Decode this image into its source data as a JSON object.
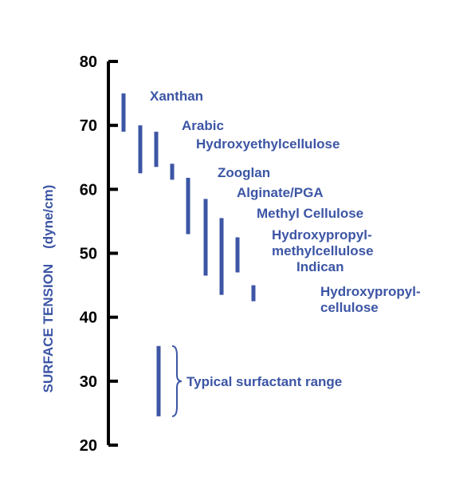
{
  "chart_data": {
    "type": "range",
    "title": "",
    "xlabel": "",
    "ylabel": "SURFACE TENSION    (dyne/cm)",
    "ylim": [
      20,
      80
    ],
    "yticks": [
      80,
      70,
      60,
      50,
      40,
      30,
      20
    ],
    "grid": false,
    "ranges": [
      {
        "label_lines": [
          "Xanthan"
        ],
        "low": 69,
        "high": 75
      },
      {
        "label_lines": [
          "Arabic"
        ],
        "low": 62.5,
        "high": 70
      },
      {
        "label_lines": [
          "Hydroxyethylcellulose"
        ],
        "low": 63.5,
        "high": 69
      },
      {
        "label_lines": [
          "Zooglan"
        ],
        "low": 61.5,
        "high": 64
      },
      {
        "label_lines": [
          "Alginate/PGA"
        ],
        "low": 53,
        "high": 61.8
      },
      {
        "label_lines": [
          "Methyl Cellulose"
        ],
        "low": 46.5,
        "high": 58.5
      },
      {
        "label_lines": [
          "Hydroxypropyl-",
          "methylcellulose"
        ],
        "low": 43.5,
        "high": 55.5
      },
      {
        "label_lines": [
          "Indican"
        ],
        "low": 47,
        "high": 52.5
      },
      {
        "label_lines": [
          "Hydroxypropyl-",
          "cellulose"
        ],
        "low": 42.5,
        "high": 45
      }
    ],
    "reference_range": {
      "label": "Typical surfactant range",
      "low": 24.5,
      "high": 35.5
    }
  },
  "colors": {
    "series": "#3c55a5",
    "axis": "#000000"
  }
}
